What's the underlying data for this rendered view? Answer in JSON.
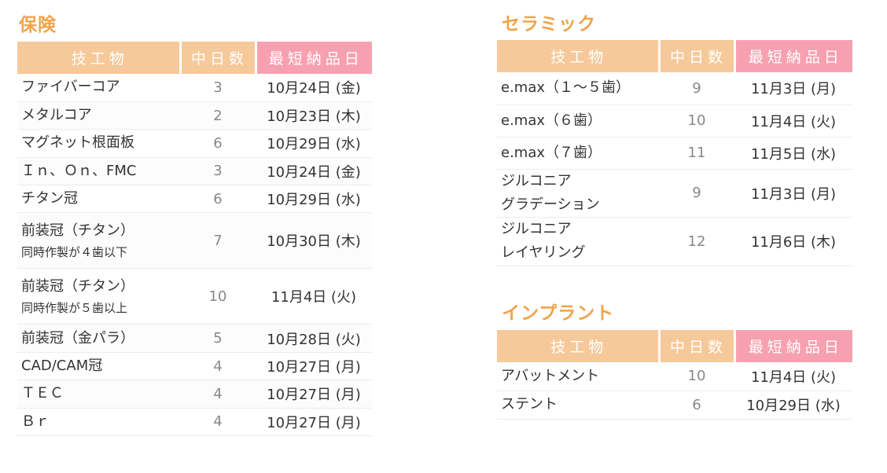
{
  "hoken": {
    "title": "保険",
    "headers": [
      "技工物",
      "中日数",
      "最短納品日"
    ],
    "rows": [
      {
        "item": "ファイバーコア",
        "sub": "",
        "days": "3",
        "date": "10月24日 (金)"
      },
      {
        "item": "メタルコア",
        "sub": "",
        "days": "2",
        "date": "10月23日 (木)"
      },
      {
        "item": "マグネット根面板",
        "sub": "",
        "days": "6",
        "date": "10月29日 (水)"
      },
      {
        "item": "Ｉｎ、Ｏｎ、FMC",
        "sub": "",
        "days": "3",
        "date": "10月24日 (金)"
      },
      {
        "item": "チタン冠",
        "sub": "",
        "days": "6",
        "date": "10月29日 (水)"
      },
      {
        "item": "前装冠（チタン）",
        "sub": "同時作製が４歯以下",
        "days": "7",
        "date": "10月30日 (木)"
      },
      {
        "item": "前装冠（チタン）",
        "sub": "同時作製が５歯以上",
        "days": "10",
        "date": "11月4日 (火)"
      },
      {
        "item": "前装冠（金パラ）",
        "sub": "",
        "days": "5",
        "date": "10月28日 (火)"
      },
      {
        "item": "CAD/CAM冠",
        "sub": "",
        "days": "4",
        "date": "10月27日 (月)"
      },
      {
        "item": "ＴＥＣ",
        "sub": "",
        "days": "4",
        "date": "10月27日 (月)"
      },
      {
        "item": "Ｂｒ",
        "sub": "",
        "days": "4",
        "date": "10月27日 (月)"
      }
    ]
  },
  "ceramic": {
    "title": "セラミック",
    "headers": [
      "技工物",
      "中日数",
      "最短納品日"
    ],
    "rows": [
      {
        "item": "e.max（１～５歯）",
        "item2": "",
        "days": "9",
        "date": "11月3日 (月)"
      },
      {
        "item": "e.max（６歯）",
        "item2": "",
        "days": "10",
        "date": "11月4日 (火)"
      },
      {
        "item": "e.max（７歯）",
        "item2": "",
        "days": "11",
        "date": "11月5日 (水)"
      },
      {
        "item": "ジルコニア",
        "item2": "グラデーション",
        "days": "9",
        "date": "11月3日 (月)"
      },
      {
        "item": "ジルコニア",
        "item2": "レイヤリング",
        "days": "12",
        "date": "11月6日 (木)"
      }
    ]
  },
  "implant": {
    "title": "インプラント",
    "headers": [
      "技工物",
      "中日数",
      "最短納品日"
    ],
    "rows": [
      {
        "item": "アバットメント",
        "days": "10",
        "date": "11月4日 (火)"
      },
      {
        "item": "ステント",
        "days": "6",
        "date": "10月29日 (水)"
      }
    ]
  },
  "colors": {
    "title": "#f0a44c",
    "header_orange": "#f6c99a",
    "header_pink": "#f7a1b0"
  }
}
